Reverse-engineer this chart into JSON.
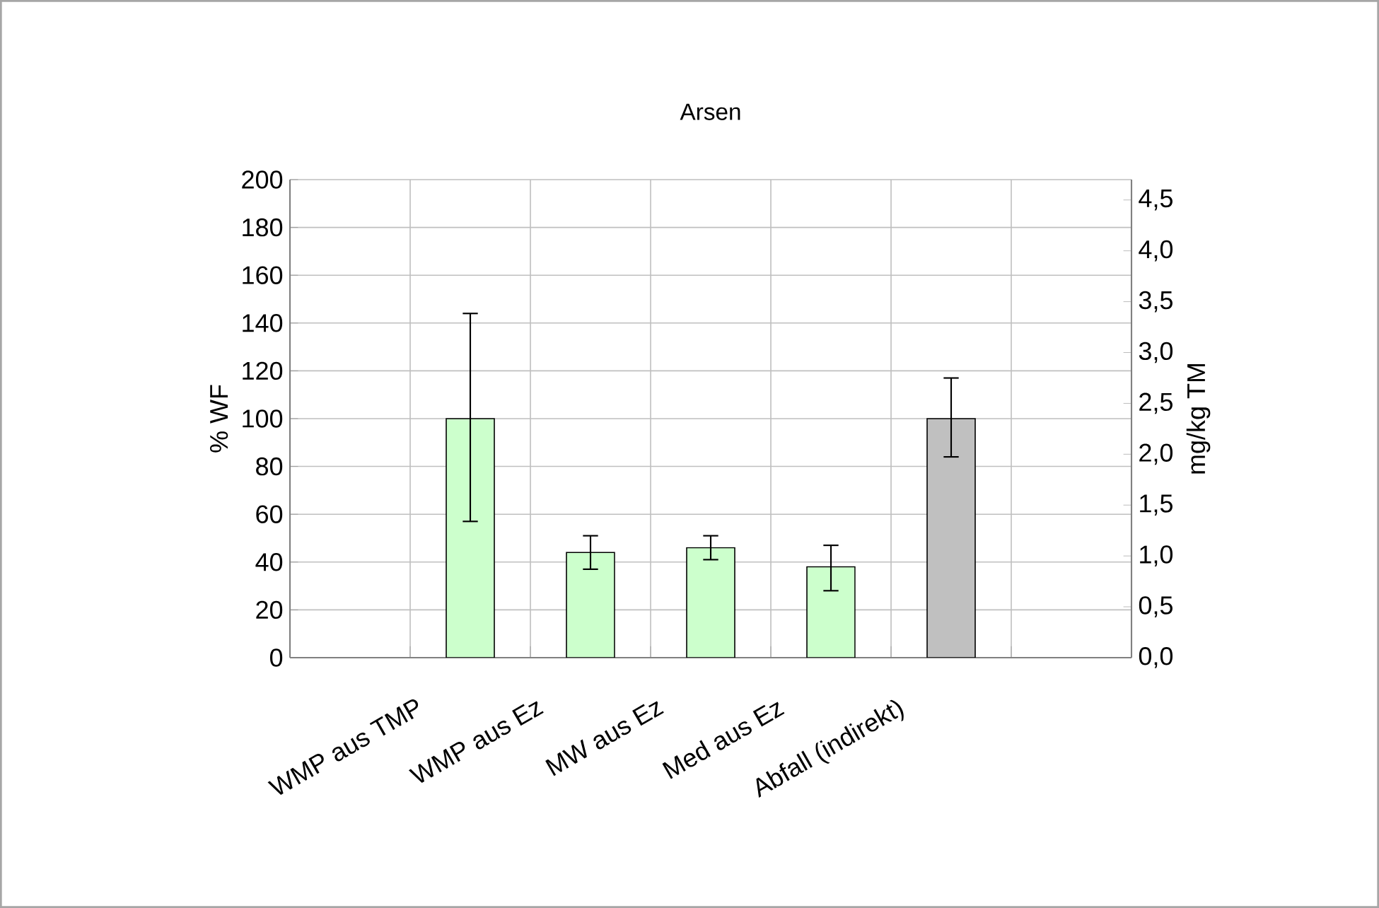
{
  "chart_data": {
    "type": "bar",
    "title": "Arsen",
    "ylabel": "% WF",
    "y2label": "mg/kg TM",
    "categories": [
      null,
      "WMP aus TMP",
      "WMP aus Ez",
      "MW aus Ez",
      "Med aus Ez",
      "Abfall  (indirekt)",
      null
    ],
    "values": [
      null,
      100,
      44,
      46,
      38,
      100,
      null
    ],
    "colors": [
      "#ccffcc",
      "#ccffcc",
      "#ccffcc",
      "#ccffcc",
      "#ccffcc",
      "#c0c0c0",
      "#ccffcc"
    ],
    "errors": [
      null,
      [
        57,
        144
      ],
      [
        37,
        51
      ],
      [
        41,
        51
      ],
      [
        28,
        47
      ],
      [
        84,
        117
      ],
      null
    ],
    "ylim": [
      0,
      200
    ],
    "yticks": [
      0,
      20,
      40,
      60,
      80,
      100,
      120,
      140,
      160,
      180,
      200
    ],
    "y2lim": [
      0,
      4.7
    ],
    "y2ticks": [
      {
        "value": 0,
        "label": "0,0"
      },
      {
        "value": 0.5,
        "label": "0,5"
      },
      {
        "value": 1,
        "label": "1,0"
      },
      {
        "value": 1.5,
        "label": "1,5"
      },
      {
        "value": 2,
        "label": "2,0"
      },
      {
        "value": 2.5,
        "label": "2,5"
      },
      {
        "value": 3,
        "label": "3,0"
      },
      {
        "value": 3.5,
        "label": "3,5"
      },
      {
        "value": 4,
        "label": "4,0"
      },
      {
        "value": 4.5,
        "label": "4,5"
      }
    ],
    "grid": true
  }
}
